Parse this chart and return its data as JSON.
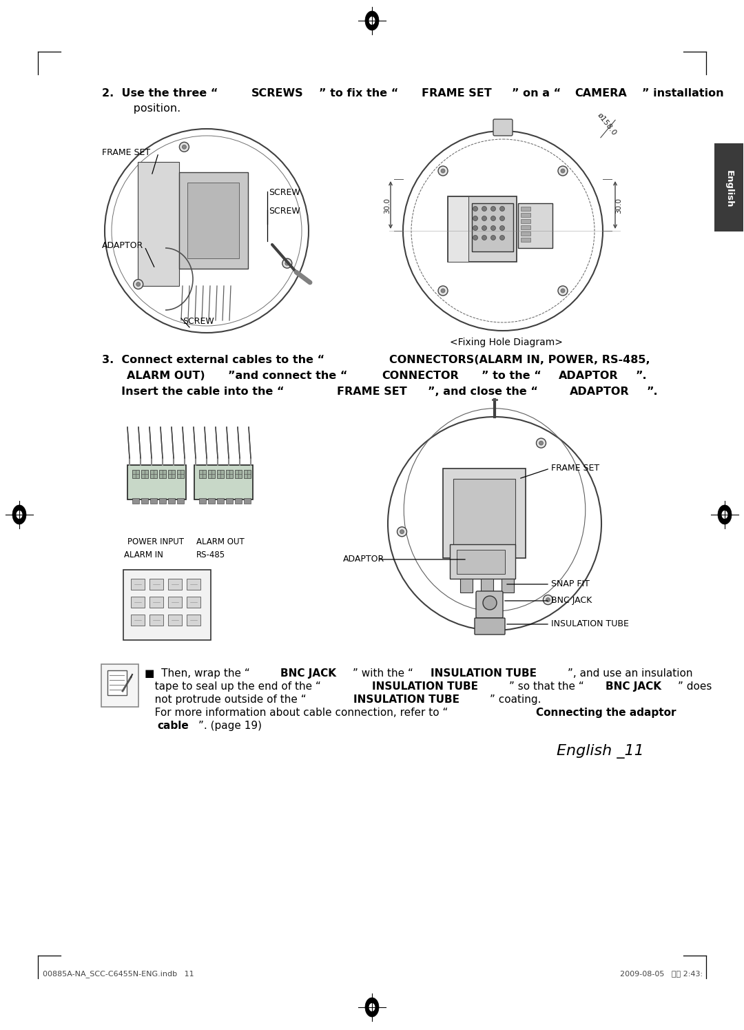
{
  "bg_color": "#ffffff",
  "page_width": 10.8,
  "page_height": 14.95,
  "text_color": "#000000",
  "english_tab_text": "English",
  "english_tab_color": "#3a3a3a",
  "step2_parts_line1": [
    [
      "2.  Use the three “",
      true,
      false
    ],
    [
      "SCREWS",
      true,
      true
    ],
    [
      "” to fix the “",
      true,
      false
    ],
    [
      "FRAME SET",
      true,
      true
    ],
    [
      "” on a “",
      true,
      false
    ],
    [
      "CAMERA",
      true,
      true
    ],
    [
      "” installation",
      true,
      false
    ]
  ],
  "step2_line2": "     position.",
  "step3_parts_line1": [
    [
      "3.  Connect external cables to the “",
      true,
      false
    ],
    [
      "CONNECTORS(ALARM IN, POWER, RS-485,",
      true,
      true
    ]
  ],
  "step3_parts_line2": [
    [
      "     ",
      true,
      false
    ],
    [
      "ALARM OUT)",
      true,
      true
    ],
    [
      "”and connect the “",
      true,
      false
    ],
    [
      "CONNECTOR",
      true,
      true
    ],
    [
      "” to the “",
      true,
      false
    ],
    [
      "ADAPTOR",
      true,
      true
    ],
    [
      "”.",
      true,
      false
    ]
  ],
  "step3_parts_line3": [
    [
      "     Insert the cable into the “",
      true,
      false
    ],
    [
      "FRAME SET",
      true,
      true
    ],
    [
      "”, and close the “",
      true,
      false
    ],
    [
      "ADAPTOR",
      true,
      true
    ],
    [
      "”.",
      true,
      false
    ]
  ],
  "fixing_hole_caption": "<Fixing Hole Diagram>",
  "label_frame_set_1": "FRAME SET",
  "label_adaptor_1": "ADAPTOR",
  "label_screw_upper": "SCREW",
  "label_screw_mid": "SCREW",
  "label_screw_lower": "SCREW",
  "label_power_input": "POWER INPUT",
  "label_alarm_out": "ALARM OUT",
  "label_alarm_in": "ALARM IN",
  "label_rs485": "RS-485",
  "label_frame_set_2": "FRAME SET",
  "label_adaptor_2": "ADAPTOR",
  "label_snap_fit": "SNAP FIT",
  "label_bnc_jack": "BNC JACK",
  "label_insulation_tube": "INSULATION TUBE",
  "note_parts_line1": [
    [
      "■  Then, wrap the “",
      false
    ],
    [
      "BNC JACK",
      true
    ],
    [
      "” with the “",
      false
    ],
    [
      "INSULATION TUBE",
      true
    ],
    [
      "”, and use an insulation",
      false
    ]
  ],
  "note_parts_line2": [
    [
      "   tape to seal up the end of the “",
      false
    ],
    [
      "INSULATION TUBE",
      true
    ],
    [
      "” so that the “",
      false
    ],
    [
      "BNC JACK",
      true
    ],
    [
      "” does",
      false
    ]
  ],
  "note_parts_line3": [
    [
      "   not protrude outside of the “",
      false
    ],
    [
      "INSULATION TUBE",
      true
    ],
    [
      "” coating.",
      false
    ]
  ],
  "note_parts_line4": [
    [
      "   For more information about cable connection, refer to “Connecting the adaptor",
      false
    ]
  ],
  "note_parts_line4b": [
    [
      "   For more information about cable connection, refer to “",
      false
    ],
    [
      "Connecting the adaptor",
      true
    ]
  ],
  "note_parts_line5": [
    [
      "   ",
      false
    ],
    [
      "cable",
      true
    ],
    [
      "”. (page 19)",
      false
    ]
  ],
  "footer_left": "00885A-NA_SCC-C6455N-ENG.indb   11",
  "footer_right": "2009-08-05   오후 2:43:",
  "footer_page_label": "English _11"
}
